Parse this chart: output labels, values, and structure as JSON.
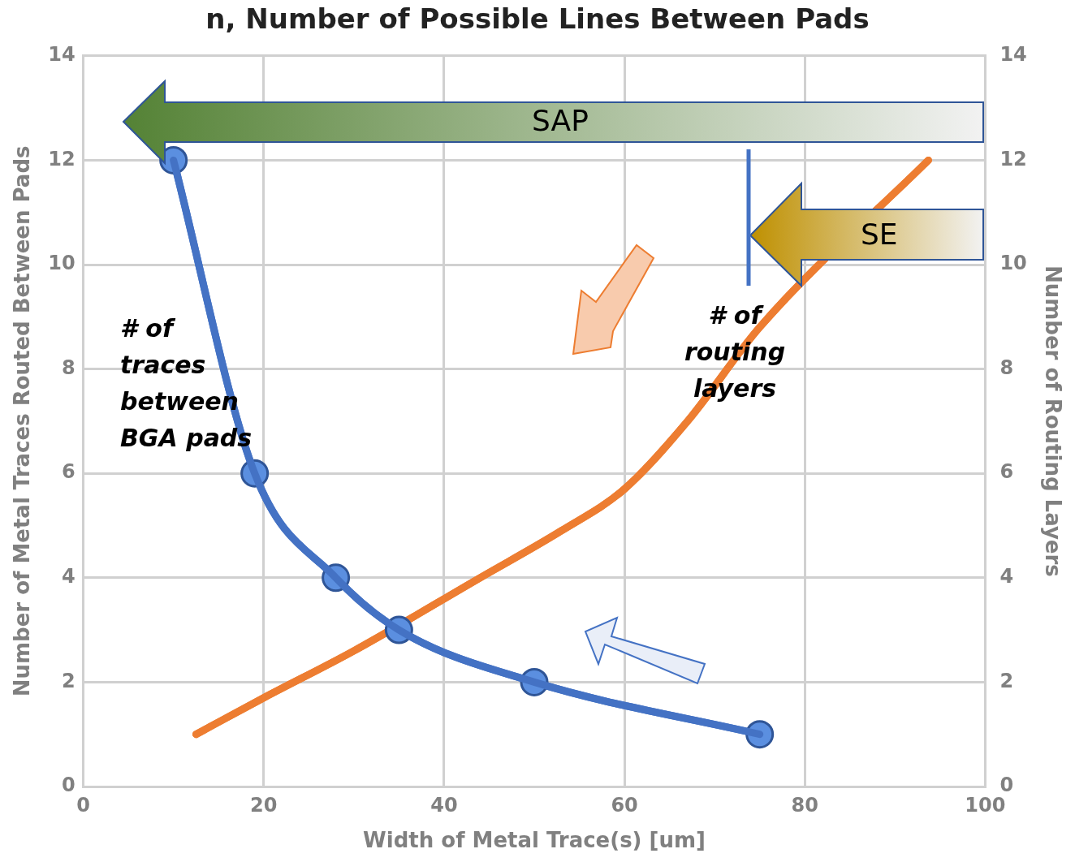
{
  "chart_data": {
    "type": "line",
    "title": "n, Number of Possible Lines Between Pads",
    "xlabel": "Width of Metal Trace(s) [um]",
    "ylabel": "Number of Metal Traces Routed Between Pads",
    "y2label": "Number of Routing Layers",
    "xlim": [
      0,
      100
    ],
    "xticks": [
      0,
      20,
      40,
      60,
      80,
      100
    ],
    "ylim": [
      0,
      14
    ],
    "yticks": [
      0,
      2,
      4,
      6,
      8,
      10,
      12,
      14
    ],
    "y2lim": [
      0,
      14
    ],
    "y2ticks": [
      0,
      2,
      4,
      6,
      8,
      10,
      12,
      14
    ],
    "grid": true,
    "legend": false,
    "series": [
      {
        "color": "#4472c4",
        "marker": "circle",
        "x": [
          10,
          19,
          28,
          35,
          50,
          75
        ],
        "values": [
          12,
          6,
          4,
          3,
          2,
          1
        ]
      },
      {
        "color": "#ed7d31",
        "marker": "none",
        "axis": "y2",
        "x": [
          12.5,
          20,
          30,
          44,
          53,
          60,
          67,
          75,
          93.7
        ],
        "values": [
          1,
          1.7,
          2.6,
          4,
          4.9,
          5.7,
          7,
          8.8,
          12
        ]
      }
    ],
    "annotations": [
      "SAP",
      "SE",
      "# of traces between BGA pads",
      "# of routing layers"
    ]
  }
}
